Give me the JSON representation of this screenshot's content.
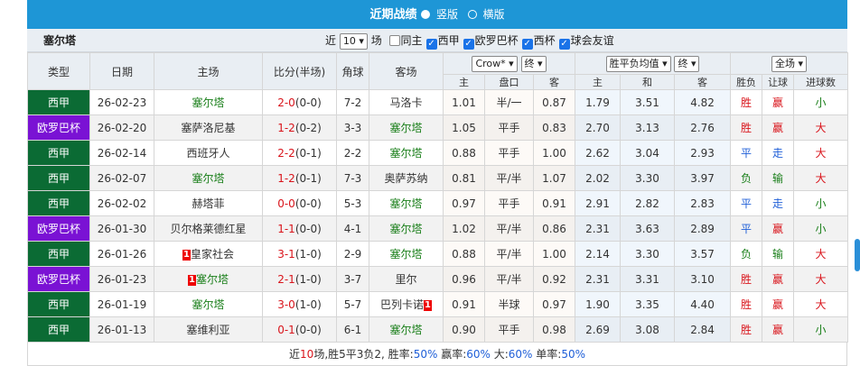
{
  "title": {
    "text": "近期战绩",
    "opt1": "竖版",
    "opt2": "横版"
  },
  "team": "塞尔塔",
  "filters": {
    "near": "近",
    "count": "10",
    "unit": "场",
    "same_home": "同主",
    "leagues": [
      "西甲",
      "欧罗巴杯",
      "西杯",
      "球会友谊"
    ]
  },
  "headers": {
    "type": "类型",
    "date": "日期",
    "home": "主场",
    "score": "比分(半场)",
    "corner": "角球",
    "away": "客场",
    "company": "Crow*",
    "crow_stage": "终",
    "avg": "胜平负均值",
    "avg_stage": "终",
    "range": "全场",
    "sub": [
      "主",
      "盘口",
      "客",
      "主",
      "和",
      "客",
      "胜负",
      "让球",
      "进球数"
    ]
  },
  "colors": {
    "league_la_liga": "#0b6b34",
    "league_europa": "#7a12d4",
    "title_bar": "#1e96d6"
  },
  "rows": [
    {
      "type": "西甲",
      "date": "26-02-23",
      "home": "塞尔塔",
      "home_card": "",
      "score": "2-0",
      "half": "(0-0)",
      "corner": "7-2",
      "away": "马洛卡",
      "away_card": "",
      "o1": "1.01",
      "line": "半/一",
      "o2": "0.87",
      "a1": "1.79",
      "a2": "3.51",
      "a3": "4.82",
      "wl": "胜",
      "hc": "赢",
      "ou": "小"
    },
    {
      "type": "欧罗巴杯",
      "date": "26-02-20",
      "home": "塞萨洛尼基",
      "home_card": "",
      "score": "1-2",
      "half": "(0-2)",
      "corner": "3-3",
      "away": "塞尔塔",
      "away_card": "",
      "o1": "1.05",
      "line": "平手",
      "o2": "0.83",
      "a1": "2.70",
      "a2": "3.13",
      "a3": "2.76",
      "wl": "胜",
      "hc": "赢",
      "ou": "大"
    },
    {
      "type": "西甲",
      "date": "26-02-14",
      "home": "西班牙人",
      "home_card": "",
      "score": "2-2",
      "half": "(0-1)",
      "corner": "2-2",
      "away": "塞尔塔",
      "away_card": "",
      "o1": "0.88",
      "line": "平手",
      "o2": "1.00",
      "a1": "2.62",
      "a2": "3.04",
      "a3": "2.93",
      "wl": "平",
      "hc": "走",
      "ou": "大"
    },
    {
      "type": "西甲",
      "date": "26-02-07",
      "home": "塞尔塔",
      "home_card": "",
      "score": "1-2",
      "half": "(0-1)",
      "corner": "7-3",
      "away": "奥萨苏纳",
      "away_card": "",
      "o1": "0.81",
      "line": "平/半",
      "o2": "1.07",
      "a1": "2.02",
      "a2": "3.30",
      "a3": "3.97",
      "wl": "负",
      "hc": "输",
      "ou": "大"
    },
    {
      "type": "西甲",
      "date": "26-02-02",
      "home": "赫塔菲",
      "home_card": "",
      "score": "0-0",
      "half": "(0-0)",
      "corner": "5-3",
      "away": "塞尔塔",
      "away_card": "",
      "o1": "0.97",
      "line": "平手",
      "o2": "0.91",
      "a1": "2.91",
      "a2": "2.82",
      "a3": "2.83",
      "wl": "平",
      "hc": "走",
      "ou": "小"
    },
    {
      "type": "欧罗巴杯",
      "date": "26-01-30",
      "home": "贝尔格莱德红星",
      "home_card": "",
      "score": "1-1",
      "half": "(0-0)",
      "corner": "4-1",
      "away": "塞尔塔",
      "away_card": "",
      "o1": "1.02",
      "line": "平/半",
      "o2": "0.86",
      "a1": "2.31",
      "a2": "3.63",
      "a3": "2.89",
      "wl": "平",
      "hc": "赢",
      "ou": "小"
    },
    {
      "type": "西甲",
      "date": "26-01-26",
      "home": "皇家社会",
      "home_card": "1",
      "score": "3-1",
      "half": "(1-0)",
      "corner": "2-9",
      "away": "塞尔塔",
      "away_card": "",
      "o1": "0.88",
      "line": "平/半",
      "o2": "1.00",
      "a1": "2.14",
      "a2": "3.30",
      "a3": "3.57",
      "wl": "负",
      "hc": "输",
      "ou": "大"
    },
    {
      "type": "欧罗巴杯",
      "date": "26-01-23",
      "home": "塞尔塔",
      "home_card": "1",
      "score": "2-1",
      "half": "(1-0)",
      "corner": "3-7",
      "away": "里尔",
      "away_card": "",
      "o1": "0.96",
      "line": "平/半",
      "o2": "0.92",
      "a1": "2.31",
      "a2": "3.31",
      "a3": "3.10",
      "wl": "胜",
      "hc": "赢",
      "ou": "大"
    },
    {
      "type": "西甲",
      "date": "26-01-19",
      "home": "塞尔塔",
      "home_card": "",
      "score": "3-0",
      "half": "(1-0)",
      "corner": "5-7",
      "away": "巴列卡诺",
      "away_card": "1",
      "o1": "0.91",
      "line": "半球",
      "o2": "0.97",
      "a1": "1.90",
      "a2": "3.35",
      "a3": "4.40",
      "wl": "胜",
      "hc": "赢",
      "ou": "大"
    },
    {
      "type": "西甲",
      "date": "26-01-13",
      "home": "塞维利亚",
      "home_card": "",
      "score": "0-1",
      "half": "(0-0)",
      "corner": "6-1",
      "away": "塞尔塔",
      "away_card": "",
      "o1": "0.90",
      "line": "平手",
      "o2": "0.98",
      "a1": "2.69",
      "a2": "3.08",
      "a3": "2.84",
      "wl": "胜",
      "hc": "赢",
      "ou": "小"
    }
  ],
  "summary": {
    "p1": "近",
    "n": "10",
    "p2": "场,胜5平3负2, 胜率:",
    "win_rate": "50%",
    "p3": " 赢率:",
    "hc_rate": "60%",
    "p4": " 大:",
    "big_rate": "60%",
    "p5": " 单率:",
    "odd_rate": "50%"
  }
}
